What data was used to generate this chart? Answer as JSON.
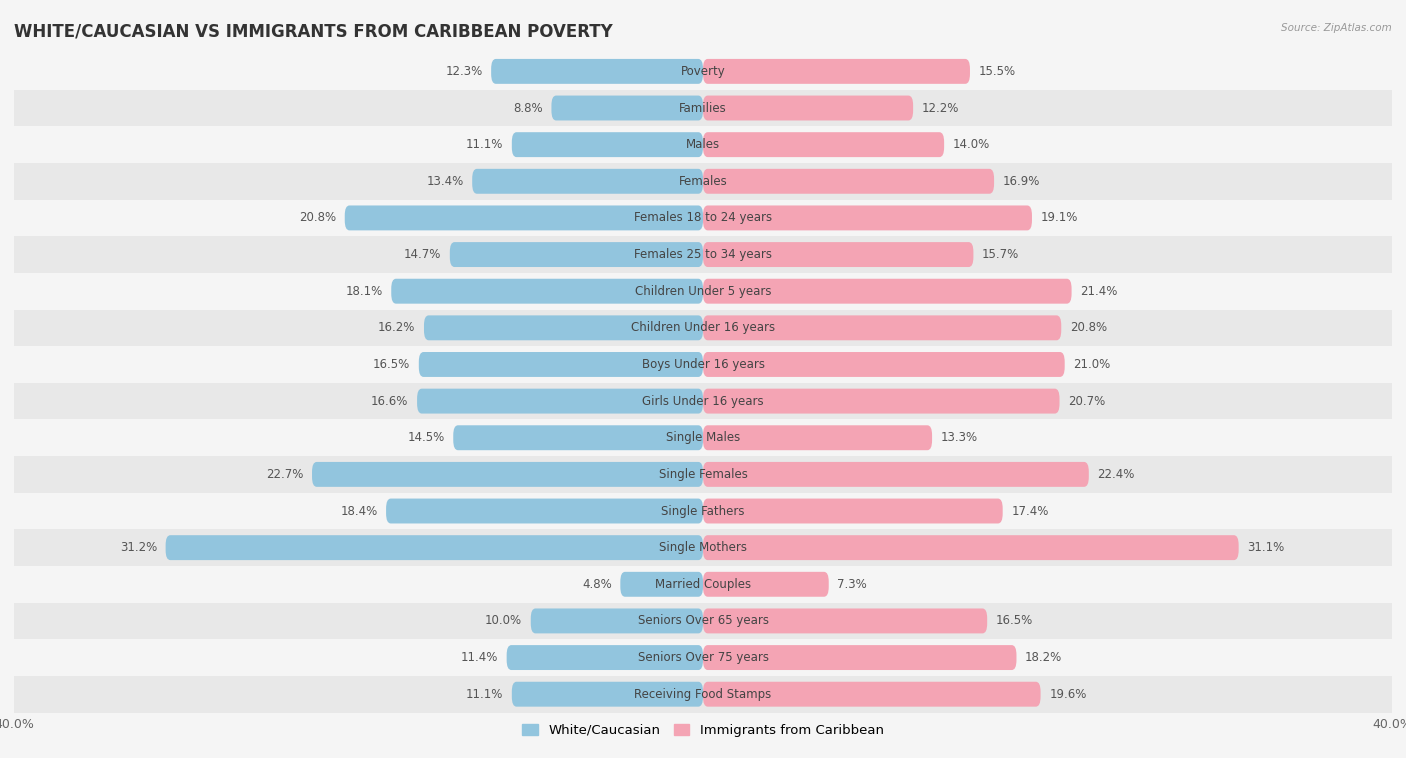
{
  "title": "WHITE/CAUCASIAN VS IMMIGRANTS FROM CARIBBEAN POVERTY",
  "source": "Source: ZipAtlas.com",
  "categories": [
    "Poverty",
    "Families",
    "Males",
    "Females",
    "Females 18 to 24 years",
    "Females 25 to 34 years",
    "Children Under 5 years",
    "Children Under 16 years",
    "Boys Under 16 years",
    "Girls Under 16 years",
    "Single Males",
    "Single Females",
    "Single Fathers",
    "Single Mothers",
    "Married Couples",
    "Seniors Over 65 years",
    "Seniors Over 75 years",
    "Receiving Food Stamps"
  ],
  "white_values": [
    12.3,
    8.8,
    11.1,
    13.4,
    20.8,
    14.7,
    18.1,
    16.2,
    16.5,
    16.6,
    14.5,
    22.7,
    18.4,
    31.2,
    4.8,
    10.0,
    11.4,
    11.1
  ],
  "immigrant_values": [
    15.5,
    12.2,
    14.0,
    16.9,
    19.1,
    15.7,
    21.4,
    20.8,
    21.0,
    20.7,
    13.3,
    22.4,
    17.4,
    31.1,
    7.3,
    16.5,
    18.2,
    19.6
  ],
  "white_color": "#92C5DE",
  "immigrant_color": "#F4A4B4",
  "white_label": "White/Caucasian",
  "immigrant_label": "Immigrants from Caribbean",
  "axis_limit": 40.0,
  "row_color_even": "#f5f5f5",
  "row_color_odd": "#e8e8e8",
  "background_color": "#f5f5f5",
  "bar_height": 0.68,
  "title_fontsize": 12,
  "label_fontsize": 8.5,
  "value_fontsize": 8.5,
  "tick_fontsize": 9,
  "legend_fontsize": 9.5
}
